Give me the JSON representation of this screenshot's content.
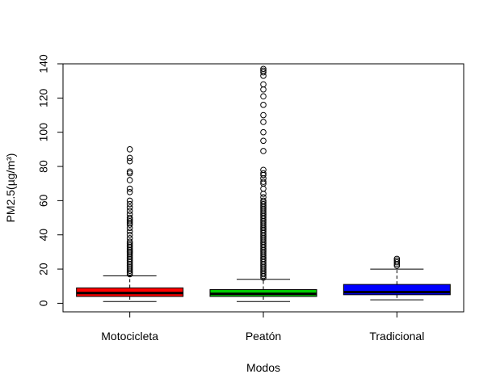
{
  "chart_data": {
    "type": "boxplot",
    "title": "",
    "xlabel": "Modos",
    "ylabel": "PM2.5(µg/m³)",
    "ylim": [
      -5,
      140
    ],
    "yticks": [
      0,
      20,
      40,
      60,
      80,
      100,
      120,
      140
    ],
    "grid": false,
    "legend": "none",
    "categories": [
      "Motocicleta",
      "Peatón",
      "Tradicional"
    ],
    "series": [
      {
        "category": "Motocicleta",
        "color": "#ff0000",
        "whisker_low": 1,
        "q1": 4,
        "median": 6,
        "q3": 9,
        "whisker_high": 16,
        "outliers": [
          17,
          18,
          19,
          20,
          21,
          22,
          23,
          24,
          25,
          26,
          27,
          28,
          29,
          30,
          30,
          31,
          32,
          33,
          34,
          35,
          36,
          38,
          40,
          42,
          44,
          46,
          47,
          48,
          49,
          50,
          52,
          54,
          56,
          58,
          60,
          65,
          67,
          72,
          76,
          77,
          83,
          85,
          90
        ]
      },
      {
        "category": "Peatón",
        "color": "#00cc00",
        "whisker_low": 1,
        "q1": 4,
        "median": 5.5,
        "q3": 8,
        "whisker_high": 14,
        "outliers": [
          15,
          16,
          17,
          18,
          19,
          20,
          21,
          22,
          23,
          24,
          25,
          26,
          27,
          28,
          29,
          30,
          31,
          32,
          33,
          34,
          35,
          36,
          37,
          38,
          39,
          40,
          41,
          42,
          43,
          44,
          45,
          46,
          47,
          48,
          49,
          50,
          51,
          52,
          53,
          54,
          55,
          56,
          57,
          58,
          59,
          60,
          62,
          64,
          67,
          70,
          71,
          73,
          75,
          76,
          78,
          89,
          95,
          100,
          106,
          110,
          116,
          121,
          125,
          128,
          133,
          135,
          136,
          137
        ]
      },
      {
        "category": "Tradicional",
        "color": "#0000ff",
        "whisker_low": 2,
        "q1": 5,
        "median": 6.5,
        "q3": 11,
        "whisker_high": 20,
        "outliers": [
          22,
          23,
          24,
          25,
          26
        ]
      }
    ]
  }
}
